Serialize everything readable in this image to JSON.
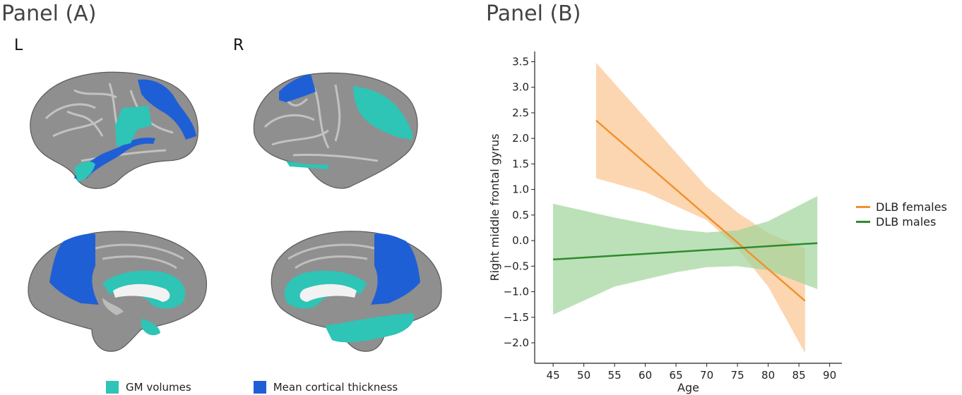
{
  "panel_a": {
    "title": "Panel (A)",
    "left_label": "L",
    "right_label": "R",
    "legend": [
      {
        "label": "GM volumes",
        "color": "#2ec4b6"
      },
      {
        "label": "Mean cortical thickness",
        "color": "#1f5fd6"
      }
    ]
  },
  "panel_b": {
    "title": "Panel (B)"
  },
  "chart_data": {
    "type": "line",
    "xlabel": "Age",
    "ylabel": "Right middle frontal gyrus",
    "xlim": [
      42,
      92
    ],
    "ylim": [
      -2.4,
      3.7
    ],
    "xticks": [
      45,
      50,
      55,
      60,
      65,
      70,
      75,
      80,
      85,
      90
    ],
    "yticks": [
      -2.0,
      -1.5,
      -1.0,
      -0.5,
      0.0,
      0.5,
      1.0,
      1.5,
      2.0,
      2.5,
      3.0,
      3.5
    ],
    "ytick_labels": [
      "−2.0",
      "−1.5",
      "−1.0",
      "−0.5",
      "0.0",
      "0.5",
      "1.0",
      "1.5",
      "2.0",
      "2.5",
      "3.0",
      "3.5"
    ],
    "grid": false,
    "legend_position": "right",
    "series": [
      {
        "name": "DLB females",
        "color": "#f0922e",
        "band_color": "#fbc590",
        "x": [
          52,
          86
        ],
        "y": [
          2.35,
          -1.18
        ],
        "band_x": [
          52,
          60,
          70,
          75,
          80,
          86
        ],
        "band_upper": [
          3.48,
          2.4,
          1.05,
          0.55,
          0.15,
          -0.15
        ],
        "band_lower": [
          1.22,
          0.95,
          0.4,
          -0.15,
          -0.9,
          -2.2
        ]
      },
      {
        "name": "DLB males",
        "color": "#2e8b2e",
        "band_color": "#9fd49a",
        "x": [
          45,
          88
        ],
        "y": [
          -0.37,
          -0.05
        ],
        "band_x": [
          45,
          55,
          65,
          70,
          75,
          80,
          88
        ],
        "band_upper": [
          0.72,
          0.45,
          0.22,
          0.16,
          0.2,
          0.38,
          0.87
        ],
        "band_lower": [
          -1.45,
          -0.9,
          -0.62,
          -0.52,
          -0.5,
          -0.58,
          -0.95
        ]
      }
    ]
  }
}
